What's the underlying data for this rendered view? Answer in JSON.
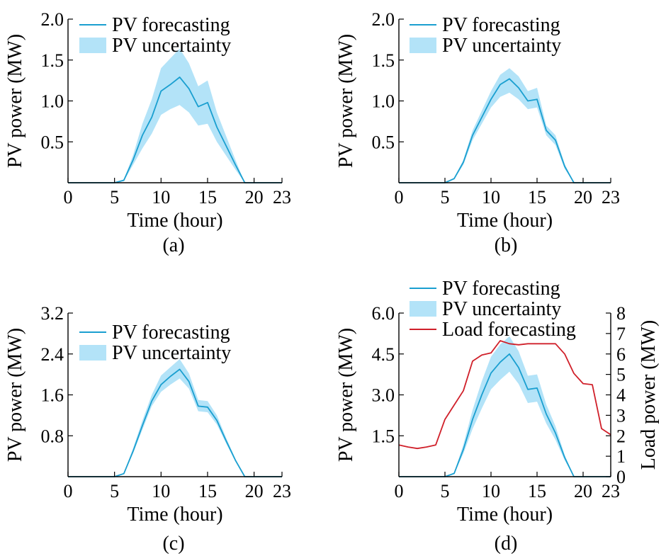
{
  "colors": {
    "forecast": "#1a9fd0",
    "uncertainty": "#b3e3f8",
    "load": "#d0202a",
    "axis": "#000000"
  },
  "chart_data": [
    {
      "type": "line",
      "panel_label": "(a)",
      "xlabel": "Time (hour)",
      "ylabel": "PV power (MW)",
      "xlim": [
        0,
        23
      ],
      "ylim": [
        0,
        2.0
      ],
      "xticks": [
        0,
        5,
        10,
        15,
        20,
        23
      ],
      "yticks": [
        0.5,
        1.0,
        1.5,
        2.0
      ],
      "ytick_labels": [
        "0.5",
        "1.0",
        "1.5",
        "2.0"
      ],
      "legend_position": "top-left",
      "x": [
        0,
        1,
        2,
        3,
        4,
        5,
        6,
        7,
        8,
        9,
        10,
        11,
        12,
        13,
        14,
        15,
        16,
        17,
        18,
        19,
        20,
        21,
        22,
        23
      ],
      "series": [
        {
          "name": "PV forecasting",
          "kind": "line",
          "values": [
            0,
            0,
            0,
            0,
            0,
            0,
            0.03,
            0.28,
            0.58,
            0.8,
            1.12,
            1.2,
            1.29,
            1.15,
            0.93,
            0.98,
            0.68,
            0.45,
            0.22,
            0,
            0,
            0,
            0,
            0
          ]
        },
        {
          "name": "PV uncertainty",
          "kind": "band",
          "lower": [
            0,
            0,
            0,
            0,
            0,
            0,
            0.02,
            0.22,
            0.42,
            0.6,
            0.83,
            0.9,
            0.95,
            0.86,
            0.7,
            0.72,
            0.5,
            0.33,
            0.16,
            0,
            0,
            0,
            0,
            0
          ],
          "upper": [
            0,
            0,
            0,
            0,
            0,
            0,
            0.04,
            0.34,
            0.72,
            1.02,
            1.4,
            1.52,
            1.64,
            1.46,
            1.18,
            1.25,
            0.86,
            0.57,
            0.28,
            0,
            0,
            0,
            0,
            0
          ]
        }
      ]
    },
    {
      "type": "line",
      "panel_label": "(b)",
      "xlabel": "Time (hour)",
      "ylabel": "PV power (MW)",
      "xlim": [
        0,
        23
      ],
      "ylim": [
        0,
        2.0
      ],
      "xticks": [
        0,
        5,
        10,
        15,
        20,
        23
      ],
      "yticks": [
        0.5,
        1.0,
        1.5,
        2.0
      ],
      "ytick_labels": [
        "0.5",
        "1.0",
        "1.5",
        "2.0"
      ],
      "legend_position": "top-left",
      "x": [
        0,
        1,
        2,
        3,
        4,
        5,
        6,
        7,
        8,
        9,
        10,
        11,
        12,
        13,
        14,
        15,
        16,
        17,
        18,
        19,
        20,
        21,
        22,
        23
      ],
      "series": [
        {
          "name": "PV forecasting",
          "kind": "line",
          "values": [
            0,
            0,
            0,
            0,
            0,
            0,
            0.05,
            0.25,
            0.58,
            0.8,
            1.02,
            1.2,
            1.27,
            1.16,
            1.0,
            1.02,
            0.64,
            0.52,
            0.2,
            0,
            0,
            0,
            0,
            0
          ]
        },
        {
          "name": "PV uncertainty",
          "kind": "band",
          "lower": [
            0,
            0,
            0,
            0,
            0,
            0,
            0.04,
            0.22,
            0.52,
            0.72,
            0.92,
            1.05,
            1.1,
            1.02,
            0.9,
            0.92,
            0.58,
            0.46,
            0.17,
            0,
            0,
            0,
            0,
            0
          ],
          "upper": [
            0,
            0,
            0,
            0,
            0,
            0,
            0.06,
            0.28,
            0.64,
            0.88,
            1.12,
            1.32,
            1.4,
            1.3,
            1.12,
            1.16,
            0.7,
            0.58,
            0.23,
            0,
            0,
            0,
            0,
            0
          ]
        }
      ]
    },
    {
      "type": "line",
      "panel_label": "(c)",
      "xlabel": "Time (hour)",
      "ylabel": "PV power (MW)",
      "xlim": [
        0,
        23
      ],
      "ylim": [
        0,
        3.2
      ],
      "xticks": [
        0,
        5,
        10,
        15,
        20,
        23
      ],
      "yticks": [
        0.8,
        1.6,
        2.4,
        3.2
      ],
      "ytick_labels": [
        "0.8",
        "1.6",
        "2.4",
        "3.2"
      ],
      "legend_position": "top-left",
      "x": [
        0,
        1,
        2,
        3,
        4,
        5,
        6,
        7,
        8,
        9,
        10,
        11,
        12,
        13,
        14,
        15,
        16,
        17,
        18,
        19,
        20,
        21,
        22,
        23
      ],
      "series": [
        {
          "name": "PV forecasting",
          "kind": "line",
          "values": [
            0,
            0,
            0,
            0,
            0,
            0,
            0.06,
            0.5,
            1.0,
            1.48,
            1.8,
            1.96,
            2.1,
            1.86,
            1.38,
            1.36,
            1.1,
            0.7,
            0.32,
            0,
            0,
            0,
            0,
            0
          ]
        },
        {
          "name": "PV uncertainty",
          "kind": "band",
          "lower": [
            0,
            0,
            0,
            0,
            0,
            0,
            0.05,
            0.46,
            0.92,
            1.38,
            1.66,
            1.8,
            1.92,
            1.72,
            1.28,
            1.26,
            1.02,
            0.65,
            0.3,
            0,
            0,
            0,
            0,
            0
          ],
          "upper": [
            0,
            0,
            0,
            0,
            0,
            0,
            0.07,
            0.56,
            1.1,
            1.6,
            1.98,
            2.14,
            2.3,
            2.02,
            1.5,
            1.48,
            1.2,
            0.76,
            0.35,
            0,
            0,
            0,
            0,
            0
          ]
        }
      ]
    },
    {
      "type": "line",
      "panel_label": "(d)",
      "xlabel": "Time (hour)",
      "ylabel": "PV power (MW)",
      "y2label": "Load power (MW)",
      "xlim": [
        0,
        23
      ],
      "ylim": [
        0,
        6.0
      ],
      "y2lim": [
        0,
        8
      ],
      "xticks": [
        0,
        5,
        10,
        15,
        20,
        23
      ],
      "yticks": [
        1.5,
        3.0,
        4.5,
        6.0
      ],
      "ytick_labels": [
        "1.5",
        "3.0",
        "4.5",
        "6.0"
      ],
      "y2ticks": [
        0,
        1,
        2,
        3,
        4,
        5,
        6,
        7,
        8
      ],
      "y2tick_labels": [
        "0",
        "1",
        "2",
        "3",
        "4",
        "5",
        "6",
        "7",
        "8"
      ],
      "legend_position": "top-left, above plot",
      "x": [
        0,
        1,
        2,
        3,
        4,
        5,
        6,
        7,
        8,
        9,
        10,
        11,
        12,
        13,
        14,
        15,
        16,
        17,
        18,
        19,
        20,
        21,
        22,
        23
      ],
      "series": [
        {
          "name": "PV forecasting",
          "kind": "line",
          "axis": "left",
          "values": [
            0,
            0,
            0,
            0,
            0,
            0,
            0.12,
            1.0,
            2.1,
            3.0,
            3.8,
            4.2,
            4.5,
            4.0,
            3.2,
            3.25,
            2.3,
            1.6,
            0.7,
            0,
            0,
            0,
            0,
            0
          ]
        },
        {
          "name": "PV uncertainty",
          "kind": "band",
          "axis": "left",
          "lower": [
            0,
            0,
            0,
            0,
            0,
            0,
            0.1,
            0.85,
            1.75,
            2.5,
            3.2,
            3.55,
            3.85,
            3.4,
            2.7,
            2.75,
            1.95,
            1.35,
            0.6,
            0,
            0,
            0,
            0,
            0
          ],
          "upper": [
            0,
            0,
            0,
            0,
            0,
            0,
            0.15,
            1.18,
            2.45,
            3.5,
            4.4,
            4.85,
            5.15,
            4.6,
            3.7,
            3.75,
            2.65,
            1.85,
            0.8,
            0,
            0,
            0,
            0,
            0
          ]
        },
        {
          "name": "Load forecasting",
          "kind": "line",
          "axis": "right",
          "values": [
            1.55,
            1.45,
            1.38,
            1.45,
            1.55,
            2.8,
            3.5,
            4.2,
            5.65,
            5.95,
            6.05,
            6.65,
            6.5,
            6.45,
            6.5,
            6.5,
            6.5,
            6.5,
            6.0,
            5.05,
            4.55,
            4.5,
            2.35,
            2.05
          ]
        }
      ]
    }
  ]
}
